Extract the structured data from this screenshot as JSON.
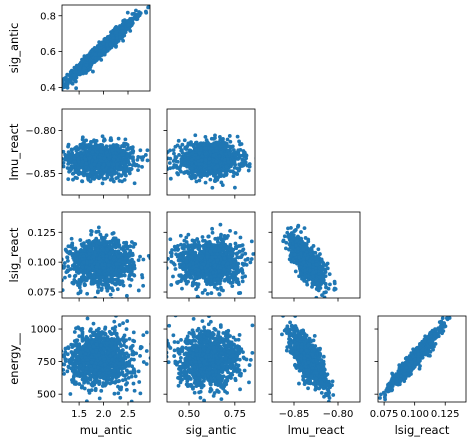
{
  "chart_data": {
    "type": "scatter",
    "variables": [
      "mu_antic",
      "sig_antic",
      "lmu_react",
      "lsig_react",
      "energy__"
    ],
    "xlabels": [
      "mu_antic",
      "sig_antic",
      "lmu_react",
      "lsig_react"
    ],
    "ylabels": [
      "sig_antic",
      "lmu_react",
      "lsig_react",
      "energy__"
    ],
    "xlim": {
      "mu_antic": [
        1.15,
        2.95
      ],
      "sig_antic": [
        0.38,
        0.86
      ],
      "lmu_react": [
        -0.875,
        -0.775
      ],
      "lsig_react": [
        0.07,
        0.142
      ]
    },
    "ylim": {
      "sig_antic": [
        0.38,
        0.86
      ],
      "lmu_react": [
        -0.875,
        -0.775
      ],
      "lsig_react": [
        0.07,
        0.142
      ],
      "energy__": [
        440,
        1100
      ]
    },
    "xticks": {
      "mu_antic": {
        "values": [
          1.5,
          2.0,
          2.5
        ],
        "labels": [
          "1.5",
          "2.0",
          "2.5"
        ]
      },
      "sig_antic": {
        "values": [
          0.5,
          0.75
        ],
        "labels": [
          "0.50",
          "0.75"
        ]
      },
      "lmu_react": {
        "values": [
          -0.85,
          -0.8
        ],
        "labels": [
          "−0.85",
          "−0.80"
        ]
      },
      "lsig_react": {
        "values": [
          0.075,
          0.1,
          0.125
        ],
        "labels": [
          "0.075",
          "0.100",
          "0.125"
        ]
      }
    },
    "yticks": {
      "sig_antic": {
        "values": [
          0.4,
          0.6,
          0.8
        ],
        "labels": [
          "0.4",
          "0.6",
          "0.8"
        ]
      },
      "lmu_react": {
        "values": [
          -0.85,
          -0.8
        ],
        "labels": [
          "−0.85",
          "−0.80"
        ]
      },
      "lsig_react": {
        "values": [
          0.075,
          0.1,
          0.125
        ],
        "labels": [
          "0.075",
          "0.100",
          "0.125"
        ]
      },
      "energy__": {
        "values": [
          500,
          750,
          1000
        ],
        "labels": [
          "500",
          "750",
          "1000"
        ]
      }
    },
    "distributions": {
      "mu_antic": {
        "mean": 1.95,
        "sd": 0.33
      },
      "sig_antic": {
        "mean": 0.61,
        "sd": 0.085
      },
      "lmu_react": {
        "mean": -0.834,
        "sd": 0.0095
      },
      "lsig_react": {
        "mean": 0.1,
        "sd": 0.0095
      },
      "energy__": {
        "mean": 770,
        "sd": 105
      }
    },
    "correlations": {
      "mu_antic|sig_antic": 0.97,
      "lmu_react|lsig_react": -0.7,
      "lmu_react|energy__": -0.72,
      "lsig_react|energy__": 0.96
    },
    "points_per_panel": 1100,
    "marker_color": "#1f77b4",
    "grid": false
  }
}
